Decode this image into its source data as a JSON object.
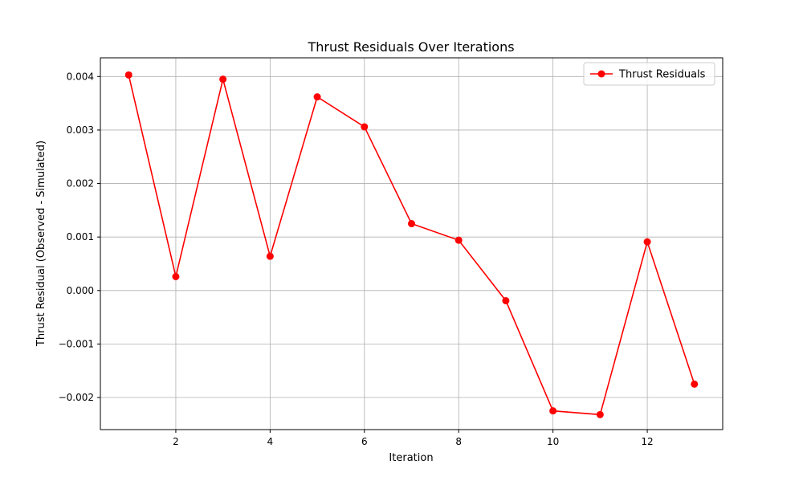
{
  "chart_data": {
    "type": "line",
    "title": "Thrust Residuals Over Iterations",
    "xlabel": "Iteration",
    "ylabel": "Thrust Residual (Observed - Simulated)",
    "xlim": [
      0.4,
      13.6
    ],
    "ylim": [
      -0.0026,
      0.00435
    ],
    "xticks": [
      2,
      4,
      6,
      8,
      10,
      12
    ],
    "xtick_labels": [
      "2",
      "4",
      "6",
      "8",
      "10",
      "12"
    ],
    "yticks": [
      -0.002,
      -0.001,
      0.0,
      0.001,
      0.002,
      0.003,
      0.004
    ],
    "ytick_labels": [
      "−0.002",
      "−0.001",
      "0.000",
      "0.001",
      "0.002",
      "0.003",
      "0.004"
    ],
    "grid": true,
    "legend_position": "top-right",
    "series": [
      {
        "name": "Thrust Residuals",
        "color": "#ff0000",
        "marker": "circle",
        "x": [
          1,
          2,
          3,
          4,
          5,
          6,
          7,
          8,
          9,
          10,
          11,
          12,
          13
        ],
        "values": [
          0.00403,
          0.00026,
          0.00395,
          0.00064,
          0.00362,
          0.00306,
          0.00125,
          0.00094,
          -0.00019,
          -0.00225,
          -0.00232,
          0.00091,
          -0.00175
        ]
      }
    ]
  }
}
